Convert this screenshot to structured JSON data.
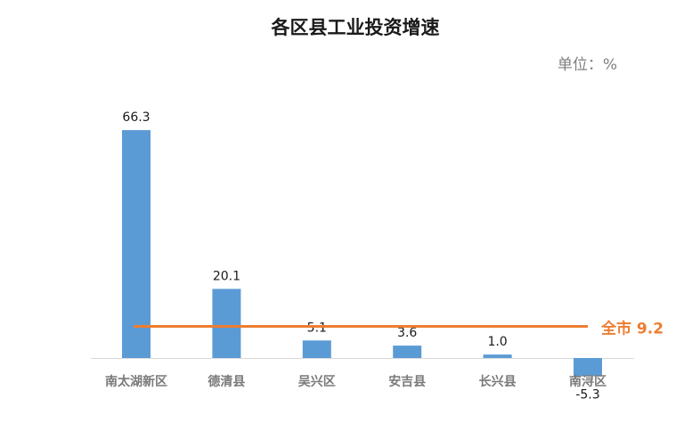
{
  "chart_data": {
    "type": "bar",
    "title": "各区县工业投资增速",
    "unit_label": "单位：%",
    "categories": [
      "南太湖新区",
      "德清县",
      "吴兴区",
      "安吉县",
      "长兴县",
      "南浔区"
    ],
    "values": [
      66.3,
      20.1,
      5.1,
      3.6,
      1.0,
      -5.3
    ],
    "value_labels": [
      "66.3",
      "20.1",
      "5.1",
      "3.6",
      "1.0",
      "-5.3"
    ],
    "reference_line": {
      "label": "全市 9.2",
      "value": 9.2,
      "color": "#ED7D31"
    },
    "bar_color": "#5B9BD5",
    "ylim": [
      -5.3,
      66.3
    ],
    "grid": false,
    "legend": "none"
  }
}
